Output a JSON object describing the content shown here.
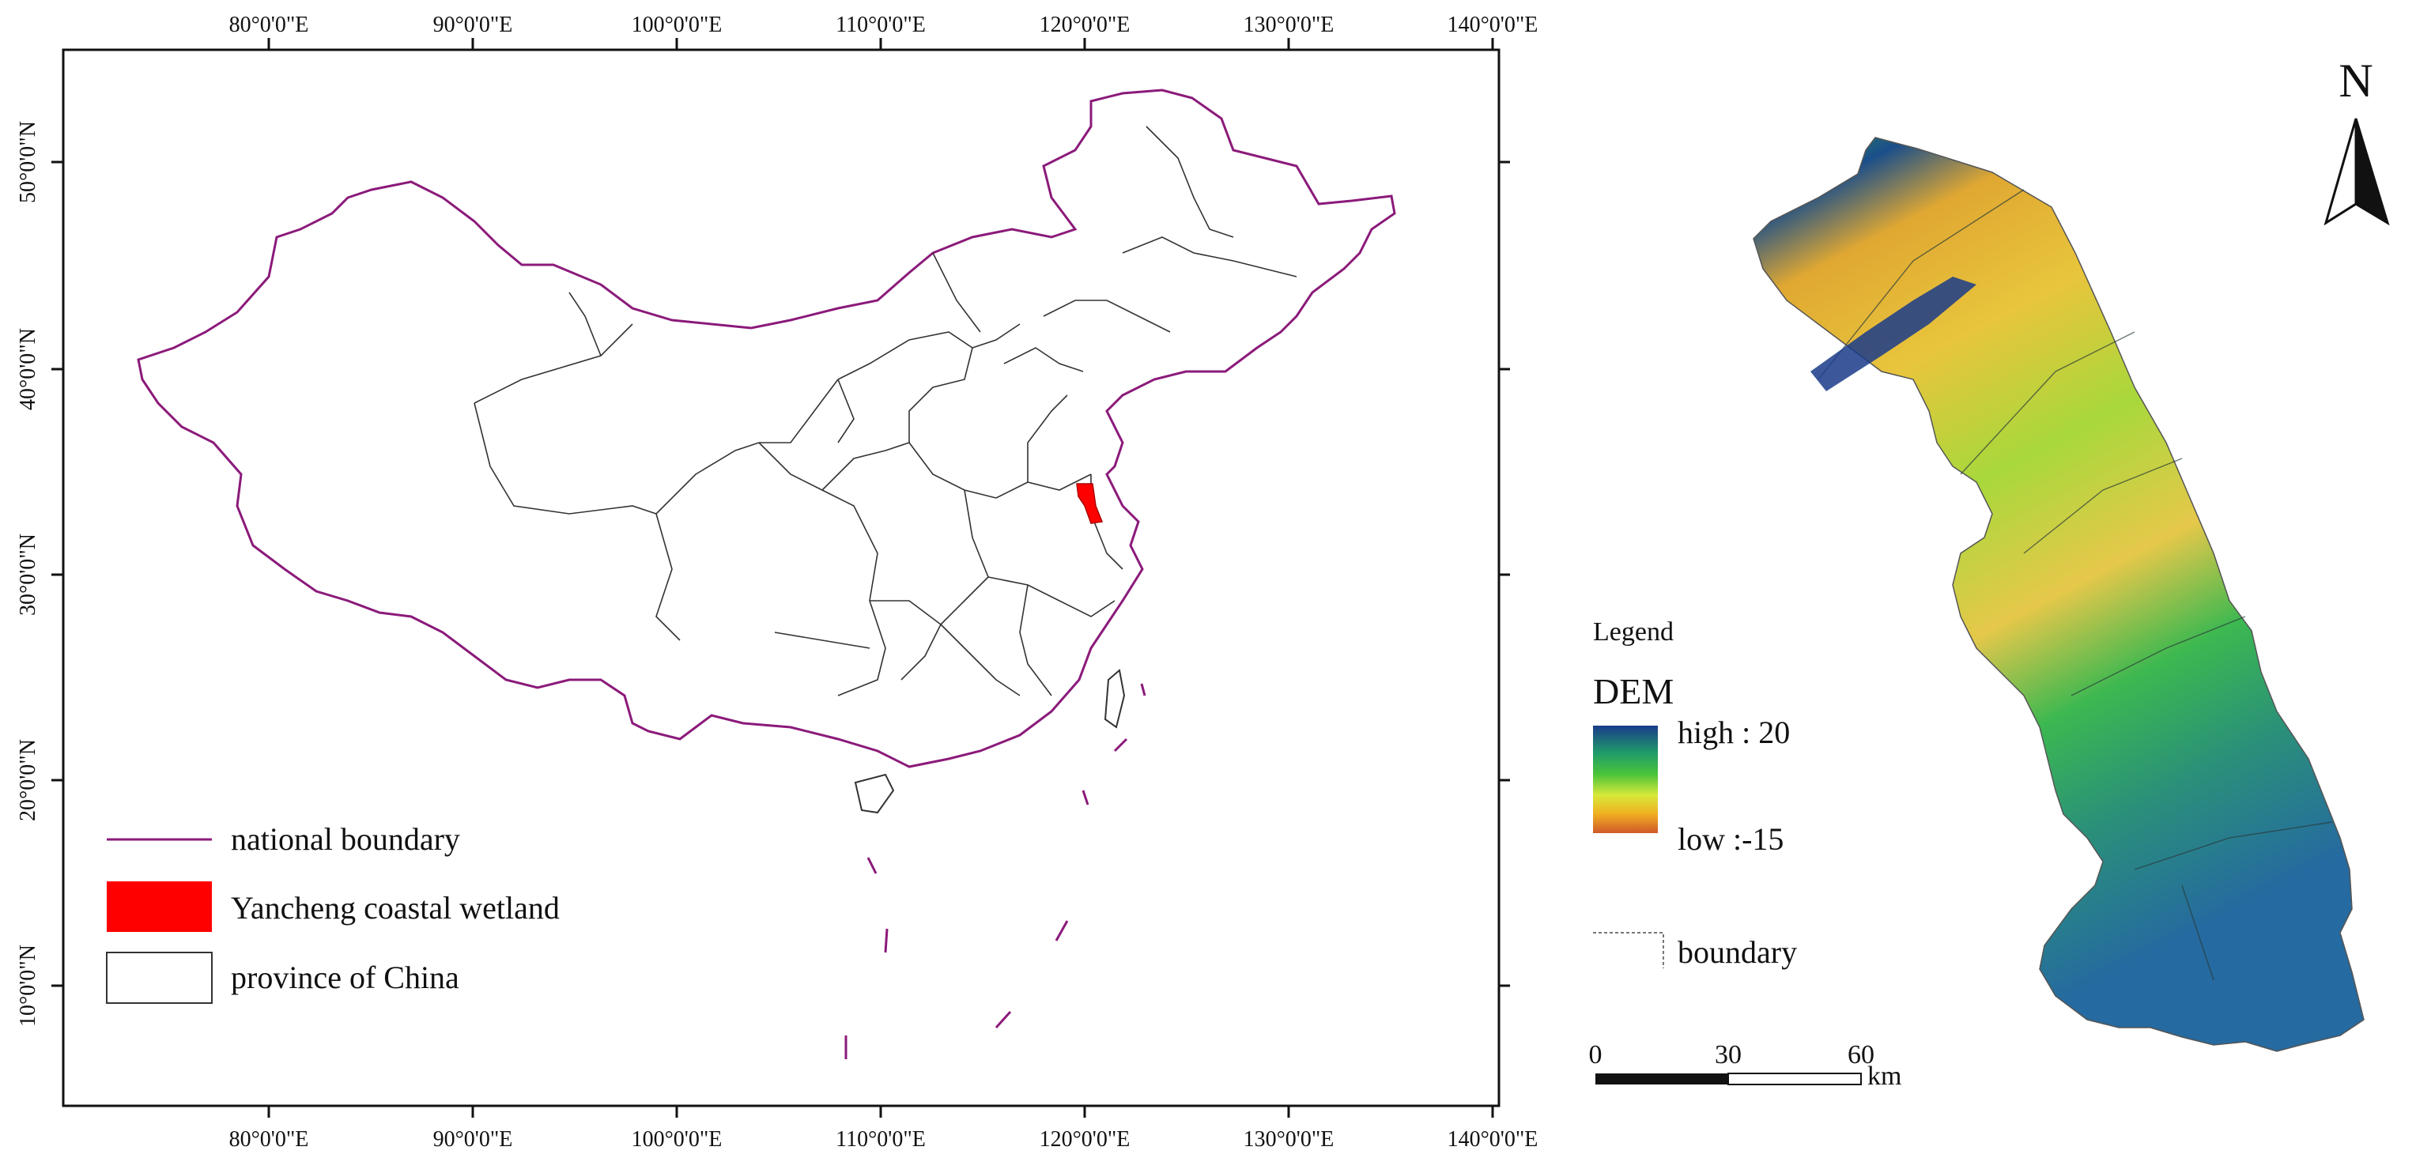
{
  "left_map": {
    "top_ticks": [
      "80°0'0\"E",
      "90°0'0\"E",
      "100°0'0\"E",
      "110°0'0\"E",
      "120°0'0\"E",
      "130°0'0\"E",
      "140°0'0\"E"
    ],
    "bottom_ticks": [
      "80°0'0\"E",
      "90°0'0\"E",
      "100°0'0\"E",
      "110°0'0\"E",
      "120°0'0\"E",
      "130°0'0\"E",
      "140°0'0\"E"
    ],
    "left_ticks": [
      "50°0'0\"N",
      "40°0'0\"N",
      "30°0'0\"N",
      "20°0'0\"N",
      "10°0'0\"N"
    ],
    "legend": {
      "national": "national boundary",
      "wetland": "Yancheng coastal wetland",
      "province": "province of China"
    },
    "colors": {
      "national": "#8b1a7a",
      "wetland": "#ff0000",
      "province": "#222222"
    }
  },
  "right_map": {
    "legend_title": "Legend",
    "dem_title": "DEM",
    "high_label": "high : 20",
    "low_label": "low :-15",
    "boundary_label": "boundary",
    "north": "N",
    "scale": {
      "t0": "0",
      "t1": "30",
      "t2": "60",
      "unit": "km"
    },
    "ramp": [
      "#1a3b8a",
      "#1f9a6a",
      "#49c43a",
      "#d9e83a",
      "#f0b020",
      "#d0582a"
    ]
  }
}
